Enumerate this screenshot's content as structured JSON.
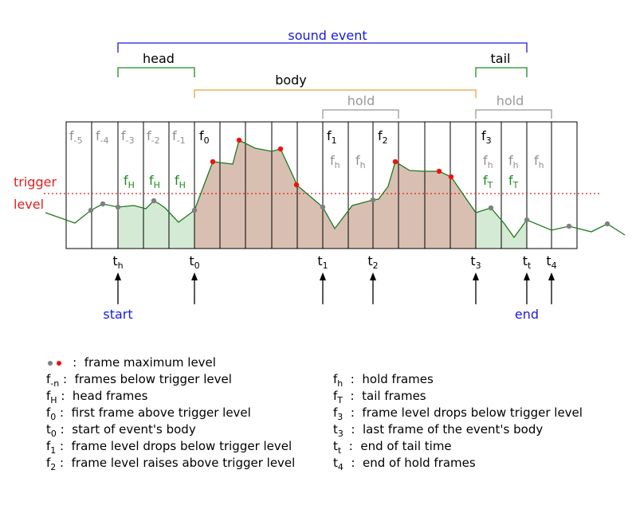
{
  "colors": {
    "sound_event": "#1a1adc",
    "head_tail": "#1e8c1e",
    "body": "#e8a040",
    "hold": "#999999",
    "trigger": "#e02020",
    "signal": "#1e7a1e",
    "head_fill": "#d4ead4",
    "body_fill": "#d9bfb2",
    "grid": "#000000",
    "gray_dot": "#808080",
    "red_dot": "#ee1111",
    "label_gray": "#909090",
    "label_green": "#1e8c1e",
    "start_end": "#1a1adc"
  },
  "brackets": {
    "sound_event": "sound event",
    "head": "head",
    "body": "body",
    "tail": "tail",
    "hold_1": "hold",
    "hold_2": "hold"
  },
  "trigger_label": {
    "line1": "trigger",
    "line2": "level"
  },
  "frames": [
    {
      "base": "f",
      "sub": "-5",
      "row": "top",
      "tone": "gray"
    },
    {
      "base": "f",
      "sub": "-4",
      "row": "top",
      "tone": "gray"
    },
    {
      "base": "f",
      "sub": "-3",
      "row": "top",
      "tone": "gray"
    },
    {
      "base": "f",
      "sub": "-2",
      "row": "top",
      "tone": "gray"
    },
    {
      "base": "f",
      "sub": "-1",
      "row": "top",
      "tone": "gray"
    },
    {
      "base": "f",
      "sub": "0",
      "row": "top",
      "tone": "black"
    },
    {
      "base": "f",
      "sub": "1",
      "row": "top",
      "tone": "black"
    },
    {
      "base": "f",
      "sub": "2",
      "row": "top",
      "tone": "black"
    },
    {
      "base": "f",
      "sub": "3",
      "row": "top",
      "tone": "black"
    },
    {
      "base": "f",
      "sub": "H",
      "row": "low",
      "tone": "green"
    },
    {
      "base": "f",
      "sub": "H",
      "row": "low",
      "tone": "green"
    },
    {
      "base": "f",
      "sub": "H",
      "row": "low",
      "tone": "green"
    },
    {
      "base": "f",
      "sub": "h",
      "row": "mid",
      "tone": "gray"
    },
    {
      "base": "f",
      "sub": "h",
      "row": "mid",
      "tone": "gray"
    },
    {
      "base": "f",
      "sub": "h",
      "row": "mid",
      "tone": "gray"
    },
    {
      "base": "f",
      "sub": "h",
      "row": "mid",
      "tone": "gray"
    },
    {
      "base": "f",
      "sub": "h",
      "row": "mid",
      "tone": "gray"
    },
    {
      "base": "f",
      "sub": "T",
      "row": "low",
      "tone": "green"
    },
    {
      "base": "f",
      "sub": "T",
      "row": "low",
      "tone": "green"
    }
  ],
  "times": [
    {
      "base": "t",
      "sub": "h",
      "arrow": true
    },
    {
      "base": "t",
      "sub": "0",
      "arrow": true
    },
    {
      "base": "t",
      "sub": "1",
      "arrow": true
    },
    {
      "base": "t",
      "sub": "2",
      "arrow": true
    },
    {
      "base": "t",
      "sub": "3",
      "arrow": true
    },
    {
      "base": "t",
      "sub": "t",
      "arrow": true
    },
    {
      "base": "t",
      "sub": "4",
      "arrow": true
    }
  ],
  "start_label": "start",
  "end_label": "end",
  "legend": {
    "dots": "  :  frame maximum level",
    "left": [
      {
        "base": "f",
        "sub": "-n",
        "text": " :  frames below trigger level"
      },
      {
        "base": "f",
        "sub": "H",
        "text": " :  head frames"
      },
      {
        "base": "f",
        "sub": "0",
        "text": " :  first frame above trigger level"
      },
      {
        "base": "t",
        "sub": "0",
        "text": " :  start of event's body"
      },
      {
        "base": "f",
        "sub": "1",
        "text": " :  frame level drops below trigger level"
      },
      {
        "base": "f",
        "sub": "2",
        "text": " :  frame level raises above trigger level"
      }
    ],
    "right": [
      {
        "base": "f",
        "sub": "h",
        "text": "  :  hold frames"
      },
      {
        "base": "f",
        "sub": "T",
        "text": "  :  tail frames"
      },
      {
        "base": "f",
        "sub": "3",
        "text": "  :  frame level drops below trigger level"
      },
      {
        "base": "t",
        "sub": "3",
        "text": "  :  last frame of the event's body"
      },
      {
        "base": "t",
        "sub": "t",
        "text": "  :  end of tail time"
      },
      {
        "base": "t",
        "sub": "4",
        "text": "  :  end of hold frames"
      }
    ]
  }
}
